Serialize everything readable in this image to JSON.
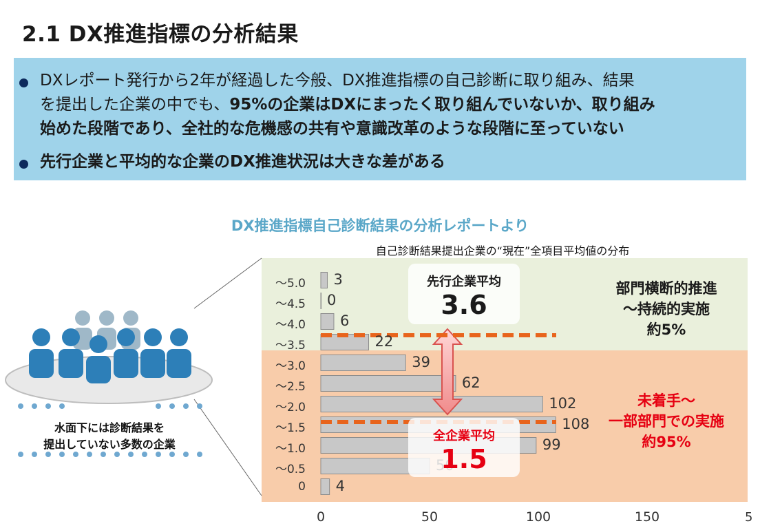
{
  "title": "2.1 DX推進指標の分析結果",
  "callout": {
    "bullet1_line1": "DXレポート発行から2年が経過した今般、DX推進指標の自己診断に取り組み、結果",
    "bullet1_line2_normal": "を提出した企業の中でも、",
    "bullet1_line2_bold": "95%の企業はDXにまったく取り組んでいないか、取り組み",
    "bullet1_line3_bold": "始めた段階であり、全社的な危機感の共有や意識改革のような段階に至っていない",
    "bullet2": "先行企業と平均的な企業のDX推進状況は大きな差がある"
  },
  "subtitle": "DX推進指標自己診断結果の分析レポートより",
  "crowd_text_line1": "水面下には診断結果を",
  "crowd_text_line2": "提出していない多数の企業",
  "leading_box": {
    "label": "先行企業平均",
    "value": "3.6"
  },
  "all_box": {
    "label": "全企業平均",
    "value": "1.5"
  },
  "note_top": {
    "line1": "部門横断的推進",
    "line2": "～持続的実施",
    "line3": "約5%"
  },
  "note_bottom": {
    "line1": "未着手～",
    "line2": "一部部門での実施",
    "line3": "約95%"
  },
  "page_number": "5",
  "colors": {
    "bar": "#c8c8c8",
    "bar_stroke": "#8c8c8c",
    "dashed": "#e8641c",
    "red": "#e60012",
    "green_bg": "#eaf0dc",
    "orange_bg": "#f8ccaa",
    "callout": "#9fd3ea",
    "subtitle": "#5aa7c8"
  },
  "chart_data": {
    "type": "bar",
    "orientation": "horizontal",
    "title": "自己診断結果提出企業の“現在”全項目平均値の分布",
    "categories": [
      "～5.0",
      "～4.5",
      "～4.0",
      "～3.5",
      "～3.0",
      "～2.5",
      "～2.0",
      "～1.5",
      "～1.0",
      "～0.5",
      "0"
    ],
    "values": [
      3,
      0,
      6,
      22,
      39,
      62,
      102,
      108,
      99,
      50,
      4
    ],
    "xlim": [
      0,
      150
    ],
    "xticks": [
      "0",
      "50",
      "100",
      "150"
    ],
    "grid": false,
    "reference_lines": [
      {
        "name": "先行企業平均",
        "value": 3.6
      },
      {
        "name": "全企業平均",
        "value": 1.5
      }
    ]
  }
}
